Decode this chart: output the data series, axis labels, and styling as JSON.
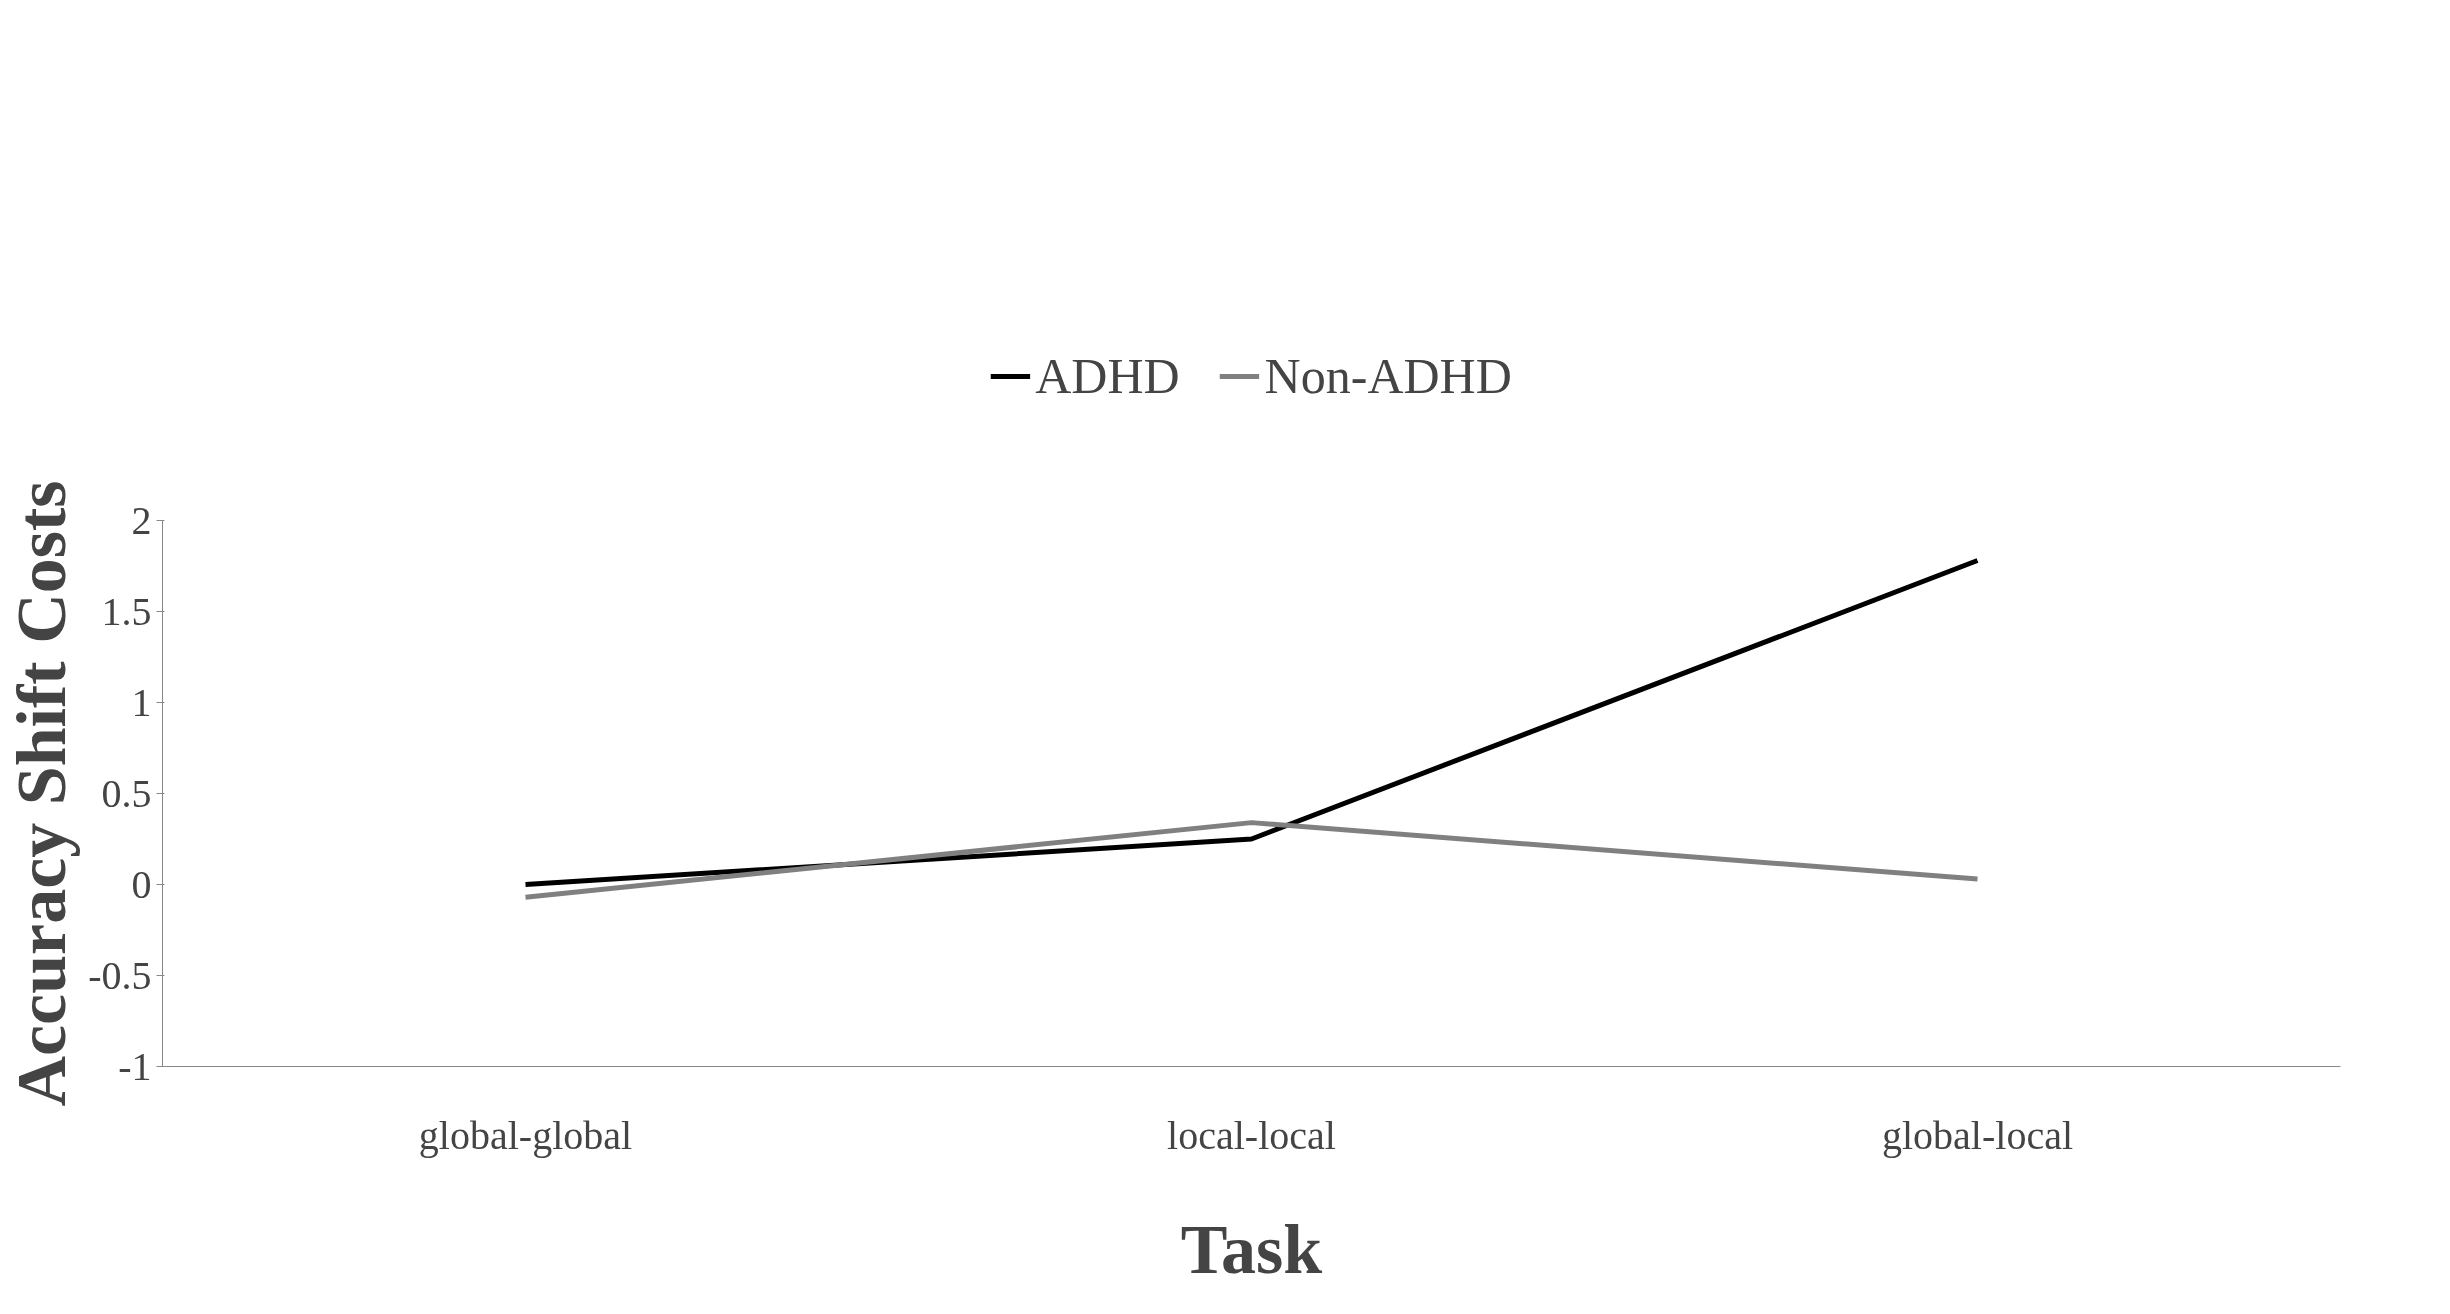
{
  "chart_data": {
    "type": "line",
    "xlabel": "Task",
    "ylabel": "Accuracy Shift Costs",
    "categories": [
      "global-global",
      "local-local",
      "global-local"
    ],
    "series": [
      {
        "name": "ADHD",
        "color": "#000000",
        "values": [
          0,
          0.25,
          1.78
        ]
      },
      {
        "name": "Non-ADHD",
        "color": "#808080",
        "values": [
          -0.07,
          0.34,
          0.03
        ]
      }
    ],
    "ylim": [
      -1,
      2
    ],
    "yticks": [
      -1,
      -0.5,
      0,
      0.5,
      1,
      1.5,
      2
    ],
    "grid": false,
    "legend": "top",
    "marker": "none",
    "line_style": "solid"
  }
}
